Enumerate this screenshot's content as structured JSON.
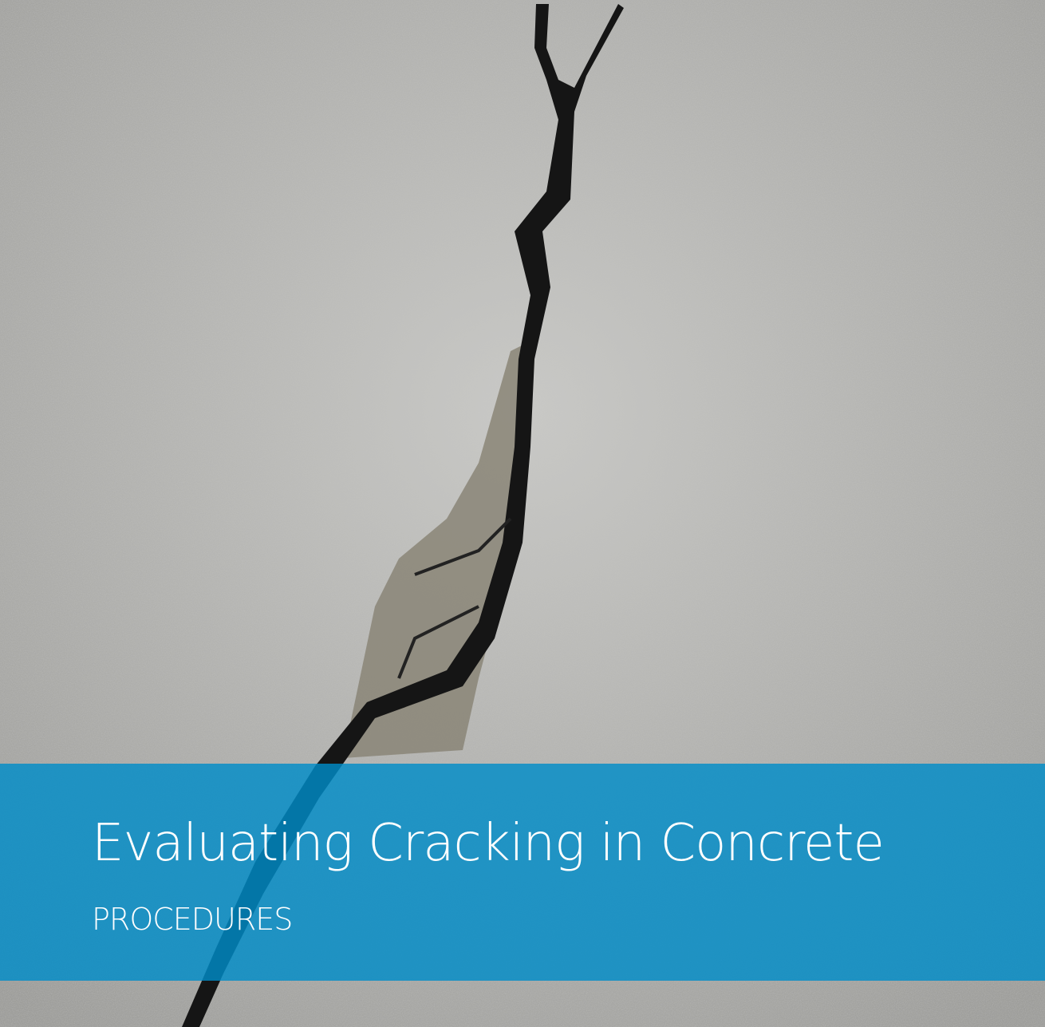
{
  "title": "Evaluating Cracking in Concrete",
  "subtitle": "PROCEDURES"
}
